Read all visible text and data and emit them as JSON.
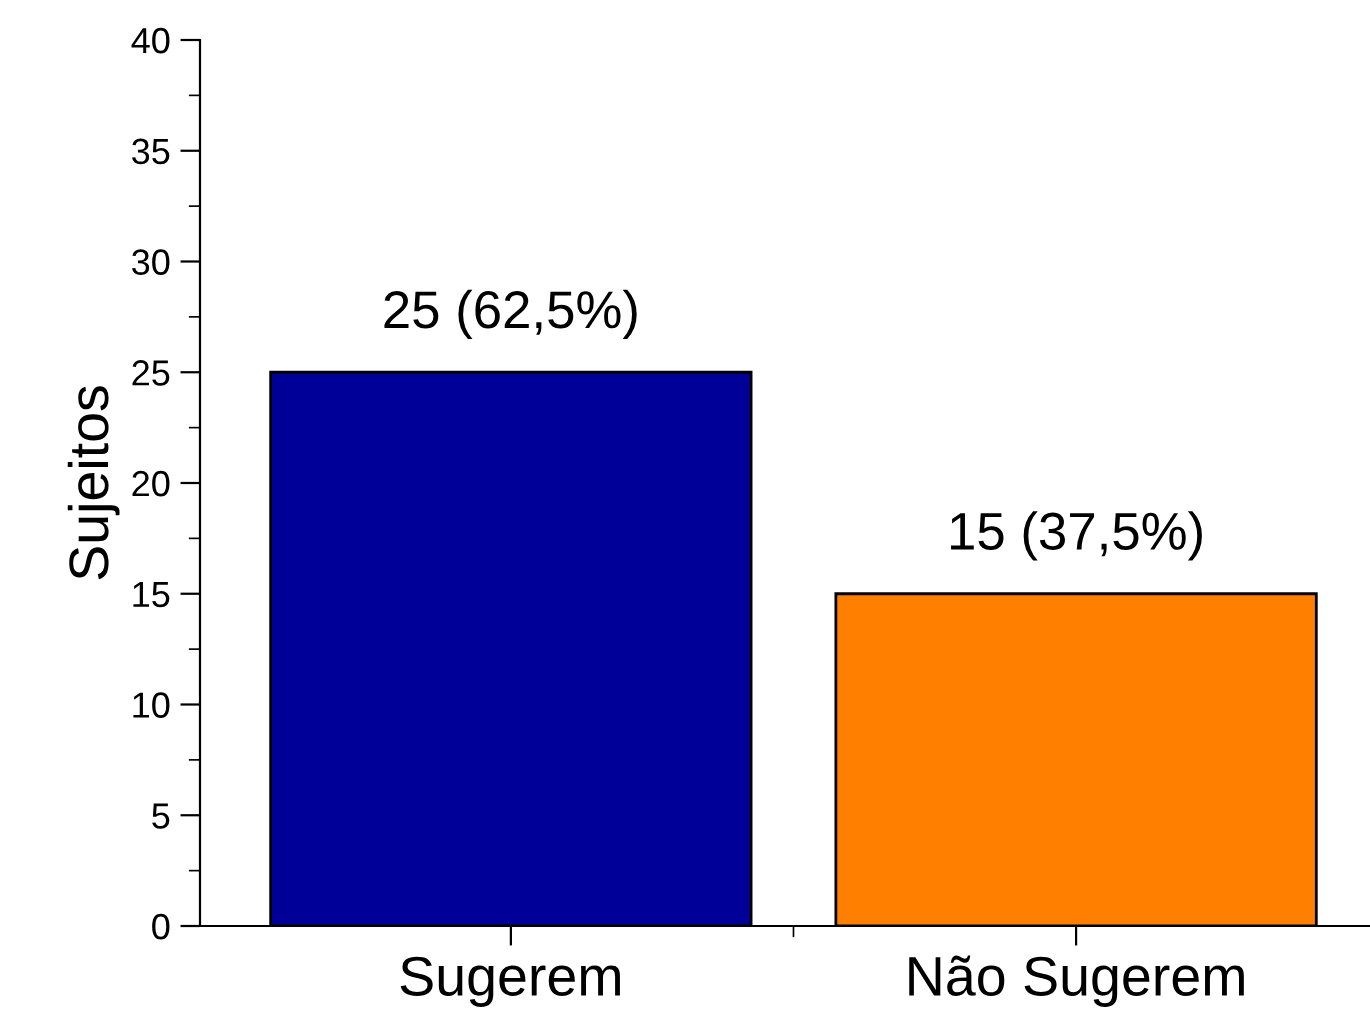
{
  "chart_data": {
    "type": "bar",
    "ylabel": "Sujeitos",
    "categories": [
      "Sugerem",
      "Não Sugerem"
    ],
    "values": [
      25,
      15
    ],
    "colors": [
      "#000099",
      "#ff8000"
    ],
    "value_labels": [
      "25 (62,5%)",
      "15 (37,5%)"
    ],
    "ylim": [
      0,
      40
    ],
    "yticks": [
      0,
      5,
      10,
      15,
      20,
      25,
      30,
      35,
      40
    ],
    "grid": false
  }
}
